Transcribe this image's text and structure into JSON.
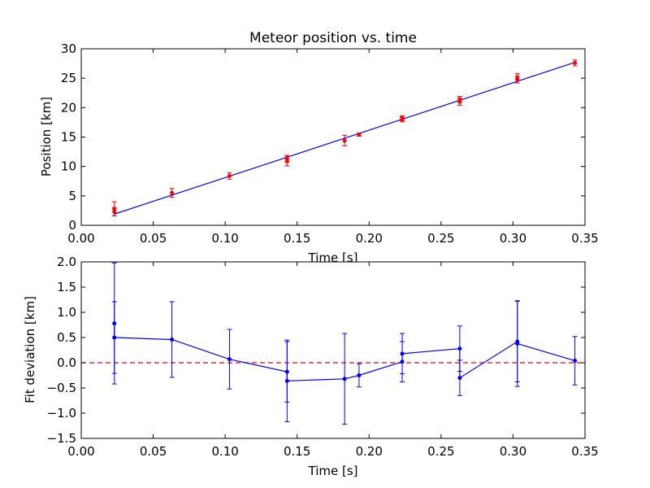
{
  "chart_data": [
    {
      "type": "scatter",
      "title": "Meteor position vs. time",
      "xlabel": "Time [s]",
      "ylabel": "Position [km]",
      "xlim": [
        0.0,
        0.35
      ],
      "ylim": [
        0,
        30
      ],
      "x_ticks": [
        "0.00",
        "0.05",
        "0.10",
        "0.15",
        "0.20",
        "0.25",
        "0.30",
        "0.35"
      ],
      "y_ticks": [
        "0",
        "5",
        "10",
        "15",
        "20",
        "25",
        "30"
      ],
      "grid": false,
      "points": {
        "x": [
          0.023,
          0.023,
          0.063,
          0.103,
          0.143,
          0.143,
          0.183,
          0.193,
          0.223,
          0.223,
          0.263,
          0.263,
          0.303,
          0.303,
          0.343
        ],
        "y": [
          2.8,
          2.3,
          5.5,
          8.4,
          11.3,
          10.9,
          14.4,
          15.4,
          18.0,
          18.2,
          21.4,
          21.0,
          25.0,
          24.8,
          27.6
        ],
        "yerr": [
          1.2,
          0.7,
          0.75,
          0.55,
          0.6,
          0.8,
          0.9,
          0.25,
          0.4,
          0.4,
          0.5,
          0.6,
          0.8,
          0.6,
          0.5
        ],
        "color": "#ff0000"
      },
      "fit_line": {
        "x": [
          0.023,
          0.343
        ],
        "y": [
          1.9,
          27.7
        ],
        "color": "#0000ff"
      }
    },
    {
      "type": "line",
      "xlabel": "Time [s]",
      "ylabel": "Fit deviation [km]",
      "xlim": [
        0.0,
        0.35
      ],
      "ylim": [
        -1.5,
        2.0
      ],
      "x_ticks": [
        "0.00",
        "0.05",
        "0.10",
        "0.15",
        "0.20",
        "0.25",
        "0.30",
        "0.35"
      ],
      "y_ticks": [
        "−1.5",
        "−1.0",
        "−0.5",
        "0.0",
        "0.5",
        "1.0",
        "1.5",
        "2.0"
      ],
      "grid": false,
      "series": [
        {
          "x": [
            0.023,
            0.023,
            0.063,
            0.103,
            0.143,
            0.143,
            0.183,
            0.193,
            0.223,
            0.223,
            0.263,
            0.263,
            0.303,
            0.303,
            0.343
          ],
          "y": [
            0.78,
            0.5,
            0.46,
            0.07,
            -0.18,
            -0.36,
            -0.32,
            -0.25,
            0.02,
            0.18,
            0.28,
            -0.3,
            0.42,
            0.38,
            0.04
          ],
          "yerr": [
            1.2,
            0.71,
            0.75,
            0.59,
            0.6,
            0.81,
            0.9,
            0.23,
            0.4,
            0.4,
            0.45,
            0.35,
            0.8,
            0.85,
            0.48
          ],
          "color": "#0000ff"
        }
      ],
      "reference_line": {
        "y": 0,
        "color": "#ff0000",
        "style": "dashed"
      }
    }
  ]
}
